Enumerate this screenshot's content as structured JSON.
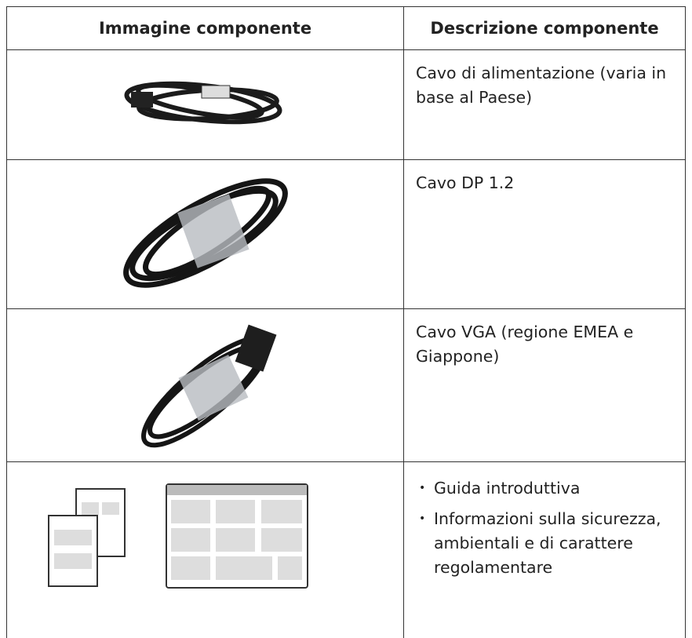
{
  "table": {
    "headers": [
      "Immagine componente",
      "Descrizione componente"
    ],
    "rows": [
      {
        "description": "Cavo di alimentazione (varia in base al Paese)"
      },
      {
        "description": "Cavo DP 1.2"
      },
      {
        "description": "Cavo VGA (regione EMEA e Giappone)"
      },
      {
        "items": [
          "Guida introduttiva",
          "Informazioni sulla sicurezza, ambientali e di carattere regolamentare"
        ]
      }
    ]
  }
}
